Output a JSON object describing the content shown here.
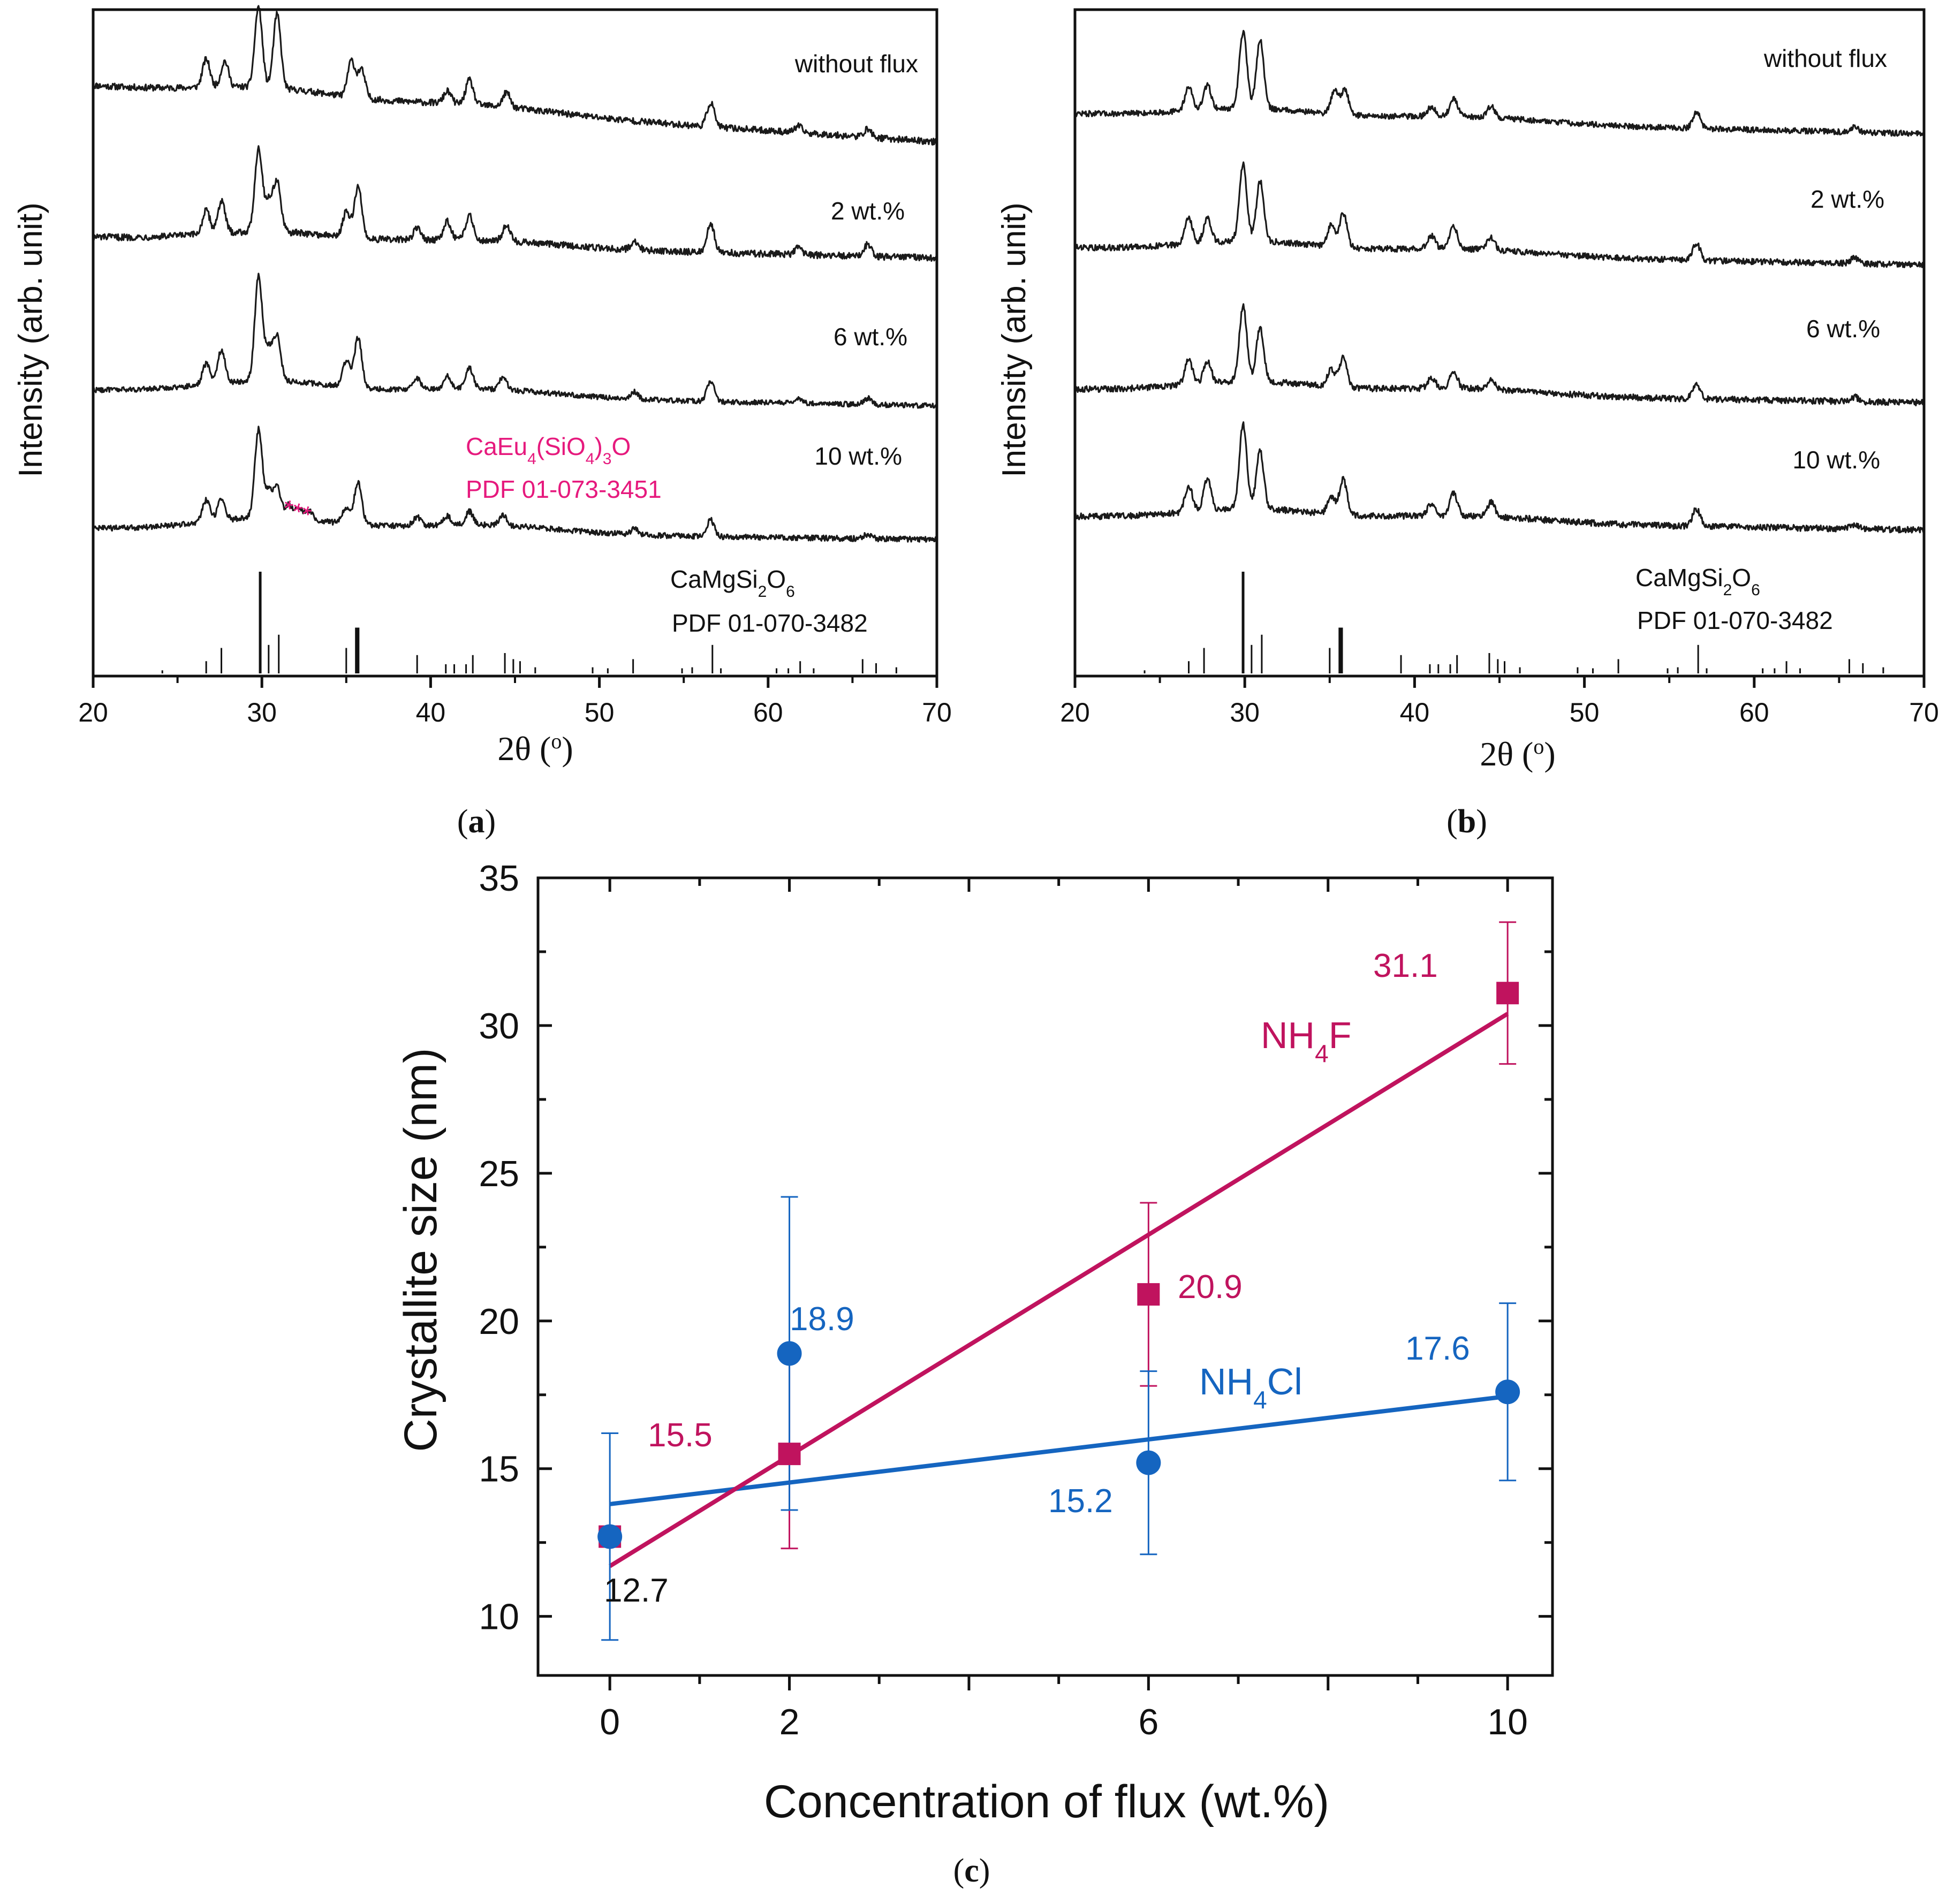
{
  "colors": {
    "axis": "#111111",
    "trace": "#1a1a1a",
    "nh4f": "#c0135e",
    "nh4cl": "#1565c0",
    "impurity": "#e6197d"
  },
  "chart_data": [
    {
      "panel": "a",
      "panel_label": "(a)",
      "type": "line",
      "title": "",
      "xlabel": "2θ (°)",
      "ylabel": "Intensity (arb. unit)",
      "xlim": [
        20,
        70
      ],
      "xticks": [
        "20",
        "30",
        "40",
        "50",
        "60",
        "70"
      ],
      "series": [
        {
          "name": "without flux",
          "peaks": [
            [
              26.7,
              0.35
            ],
            [
              27.8,
              0.32
            ],
            [
              29.8,
              1.0
            ],
            [
              30.9,
              0.92
            ],
            [
              35.3,
              0.45
            ],
            [
              35.9,
              0.35
            ],
            [
              41.0,
              0.15
            ],
            [
              42.3,
              0.3
            ],
            [
              44.5,
              0.18
            ],
            [
              56.6,
              0.3
            ],
            [
              61.8,
              0.08
            ],
            [
              65.9,
              0.1
            ]
          ],
          "noise": 0.04,
          "slope": 0.7
        },
        {
          "name": "2 wt.%",
          "peaks": [
            [
              26.7,
              0.28
            ],
            [
              27.6,
              0.38
            ],
            [
              29.8,
              1.0
            ],
            [
              30.4,
              0.35
            ],
            [
              30.9,
              0.6
            ],
            [
              35.0,
              0.3
            ],
            [
              35.7,
              0.62
            ],
            [
              39.2,
              0.14
            ],
            [
              41.0,
              0.22
            ],
            [
              42.3,
              0.3
            ],
            [
              44.5,
              0.2
            ],
            [
              52.1,
              0.1
            ],
            [
              56.6,
              0.35
            ],
            [
              61.8,
              0.08
            ],
            [
              65.9,
              0.14
            ]
          ],
          "noise": 0.04,
          "slope": 0.25
        },
        {
          "name": "6 wt.%",
          "peaks": [
            [
              26.7,
              0.2
            ],
            [
              27.6,
              0.32
            ],
            [
              29.8,
              1.0
            ],
            [
              30.4,
              0.3
            ],
            [
              30.9,
              0.42
            ],
            [
              35.0,
              0.25
            ],
            [
              35.7,
              0.48
            ],
            [
              39.2,
              0.1
            ],
            [
              41.0,
              0.12
            ],
            [
              42.3,
              0.2
            ],
            [
              44.3,
              0.12
            ],
            [
              52.1,
              0.07
            ],
            [
              56.6,
              0.2
            ],
            [
              61.8,
              0.05
            ],
            [
              65.9,
              0.06
            ]
          ],
          "noise": 0.025,
          "slope": 0.15
        },
        {
          "name": "10 wt.%",
          "peaks": [
            [
              26.7,
              0.2
            ],
            [
              27.6,
              0.2
            ],
            [
              29.8,
              0.8
            ],
            [
              30.4,
              0.22
            ],
            [
              30.9,
              0.28
            ],
            [
              31.6,
              0.12
            ],
            [
              32.2,
              0.1
            ],
            [
              32.8,
              0.08
            ],
            [
              35.0,
              0.15
            ],
            [
              35.7,
              0.38
            ],
            [
              39.2,
              0.08
            ],
            [
              41.0,
              0.08
            ],
            [
              42.3,
              0.12
            ],
            [
              44.3,
              0.09
            ],
            [
              52.1,
              0.05
            ],
            [
              56.6,
              0.15
            ],
            [
              65.9,
              0.04
            ]
          ],
          "noise": 0.025,
          "slope": 0.1
        }
      ],
      "reference": {
        "label_formula": "CaMgSi2O6",
        "label_pdf": "PDF 01-070-3482",
        "sticks": [
          [
            24.1,
            0.03
          ],
          [
            26.7,
            0.12
          ],
          [
            27.6,
            0.25
          ],
          [
            29.9,
            1.0
          ],
          [
            30.4,
            0.28
          ],
          [
            31.0,
            0.38
          ],
          [
            35.0,
            0.25
          ],
          [
            35.6,
            0.45
          ],
          [
            35.7,
            0.45
          ],
          [
            39.2,
            0.18
          ],
          [
            40.9,
            0.09
          ],
          [
            41.4,
            0.09
          ],
          [
            42.1,
            0.09
          ],
          [
            42.5,
            0.18
          ],
          [
            44.4,
            0.2
          ],
          [
            44.9,
            0.14
          ],
          [
            45.3,
            0.12
          ],
          [
            46.2,
            0.06
          ],
          [
            49.6,
            0.06
          ],
          [
            50.5,
            0.05
          ],
          [
            52.0,
            0.14
          ],
          [
            54.9,
            0.05
          ],
          [
            55.5,
            0.06
          ],
          [
            56.7,
            0.28
          ],
          [
            57.2,
            0.05
          ],
          [
            60.5,
            0.05
          ],
          [
            61.2,
            0.05
          ],
          [
            61.9,
            0.12
          ],
          [
            62.7,
            0.05
          ],
          [
            65.6,
            0.14
          ],
          [
            66.4,
            0.1
          ],
          [
            67.6,
            0.06
          ]
        ]
      },
      "annotations": {
        "impurity_formula": "CaEu4(SiO4)3O",
        "impurity_pdf": "PDF 01-073-3451",
        "marker": "***"
      }
    },
    {
      "panel": "b",
      "panel_label": "(b)",
      "type": "line",
      "title": "",
      "xlabel": "2θ (°)",
      "ylabel": "Intensity (arb. unit)",
      "xlim": [
        20,
        70
      ],
      "xticks": [
        "20",
        "30",
        "40",
        "50",
        "60",
        "70"
      ],
      "series": [
        {
          "name": "without flux",
          "peaks": [
            [
              26.7,
              0.3
            ],
            [
              27.8,
              0.3
            ],
            [
              29.9,
              0.95
            ],
            [
              30.9,
              0.85
            ],
            [
              35.3,
              0.3
            ],
            [
              35.9,
              0.3
            ],
            [
              41.0,
              0.12
            ],
            [
              42.3,
              0.22
            ],
            [
              44.5,
              0.14
            ],
            [
              56.6,
              0.2
            ],
            [
              65.9,
              0.06
            ]
          ],
          "noise": 0.035,
          "slope": 0.25
        },
        {
          "name": "2 wt.%",
          "peaks": [
            [
              26.7,
              0.3
            ],
            [
              27.8,
              0.28
            ],
            [
              29.9,
              0.9
            ],
            [
              30.9,
              0.7
            ],
            [
              35.1,
              0.25
            ],
            [
              35.8,
              0.4
            ],
            [
              41.0,
              0.15
            ],
            [
              42.3,
              0.25
            ],
            [
              44.5,
              0.14
            ],
            [
              56.6,
              0.2
            ],
            [
              65.9,
              0.06
            ]
          ],
          "noise": 0.035,
          "slope": 0.2
        },
        {
          "name": "6 wt.%",
          "peaks": [
            [
              26.7,
              0.28
            ],
            [
              27.8,
              0.25
            ],
            [
              29.9,
              0.85
            ],
            [
              30.9,
              0.6
            ],
            [
              35.1,
              0.2
            ],
            [
              35.8,
              0.35
            ],
            [
              41.0,
              0.12
            ],
            [
              42.3,
              0.2
            ],
            [
              44.5,
              0.1
            ],
            [
              56.6,
              0.18
            ],
            [
              65.9,
              0.05
            ]
          ],
          "noise": 0.035,
          "slope": 0.15
        },
        {
          "name": "10 wt.%",
          "peaks": [
            [
              26.7,
              0.3
            ],
            [
              27.8,
              0.35
            ],
            [
              29.9,
              0.95
            ],
            [
              30.9,
              0.65
            ],
            [
              35.1,
              0.2
            ],
            [
              35.8,
              0.4
            ],
            [
              41.0,
              0.14
            ],
            [
              42.3,
              0.25
            ],
            [
              44.5,
              0.16
            ],
            [
              56.6,
              0.2
            ],
            [
              65.9,
              0.05
            ]
          ],
          "noise": 0.035,
          "slope": 0.15
        }
      ],
      "reference": {
        "label_formula": "CaMgSi2O6",
        "label_pdf": "PDF 01-070-3482",
        "sticks": [
          [
            24.1,
            0.03
          ],
          [
            26.7,
            0.12
          ],
          [
            27.6,
            0.25
          ],
          [
            29.9,
            1.0
          ],
          [
            30.4,
            0.28
          ],
          [
            31.0,
            0.38
          ],
          [
            35.0,
            0.25
          ],
          [
            35.6,
            0.45
          ],
          [
            35.7,
            0.45
          ],
          [
            39.2,
            0.18
          ],
          [
            40.9,
            0.09
          ],
          [
            41.4,
            0.09
          ],
          [
            42.1,
            0.09
          ],
          [
            42.5,
            0.18
          ],
          [
            44.4,
            0.2
          ],
          [
            44.9,
            0.14
          ],
          [
            45.3,
            0.12
          ],
          [
            46.2,
            0.06
          ],
          [
            49.6,
            0.06
          ],
          [
            50.5,
            0.05
          ],
          [
            52.0,
            0.14
          ],
          [
            54.9,
            0.05
          ],
          [
            55.5,
            0.06
          ],
          [
            56.7,
            0.28
          ],
          [
            57.2,
            0.05
          ],
          [
            60.5,
            0.05
          ],
          [
            61.2,
            0.05
          ],
          [
            61.9,
            0.12
          ],
          [
            62.7,
            0.05
          ],
          [
            65.6,
            0.14
          ],
          [
            66.4,
            0.1
          ],
          [
            67.6,
            0.06
          ]
        ]
      }
    },
    {
      "panel": "c",
      "panel_label": "(c)",
      "type": "scatter",
      "title": "",
      "xlabel": "Concentration of flux (wt.%)",
      "ylabel": "Crystallite size (nm)",
      "xlim": [
        -0.8,
        10.5
      ],
      "ylim": [
        8,
        35
      ],
      "xticks": [
        0,
        2,
        6,
        10
      ],
      "yticks": [
        10,
        15,
        20,
        25,
        30,
        35
      ],
      "series": [
        {
          "name": "NH4F",
          "label_main": "NH",
          "label_sub": "4",
          "label_tail": "F",
          "marker": "square",
          "x": [
            0,
            2,
            6,
            10
          ],
          "y": [
            12.7,
            15.5,
            20.9,
            31.1
          ],
          "err": [
            0,
            3.2,
            3.1,
            2.4
          ],
          "fit": [
            [
              0,
              11.7
            ],
            [
              10,
              30.4
            ]
          ],
          "point_labels": [
            "",
            "15.5",
            "20.9",
            "31.1"
          ]
        },
        {
          "name": "NH4Cl",
          "label_main": "NH",
          "label_sub": "4",
          "label_tail": "Cl",
          "marker": "circle",
          "x": [
            0,
            2,
            6,
            10
          ],
          "y": [
            12.7,
            18.9,
            15.2,
            17.6
          ],
          "err": [
            3.5,
            5.3,
            3.1,
            3.0
          ],
          "fit": [
            [
              0,
              13.8
            ],
            [
              10,
              17.45
            ]
          ],
          "point_labels": [
            "12.7",
            "18.9",
            "15.2",
            "17.6"
          ]
        }
      ]
    }
  ]
}
